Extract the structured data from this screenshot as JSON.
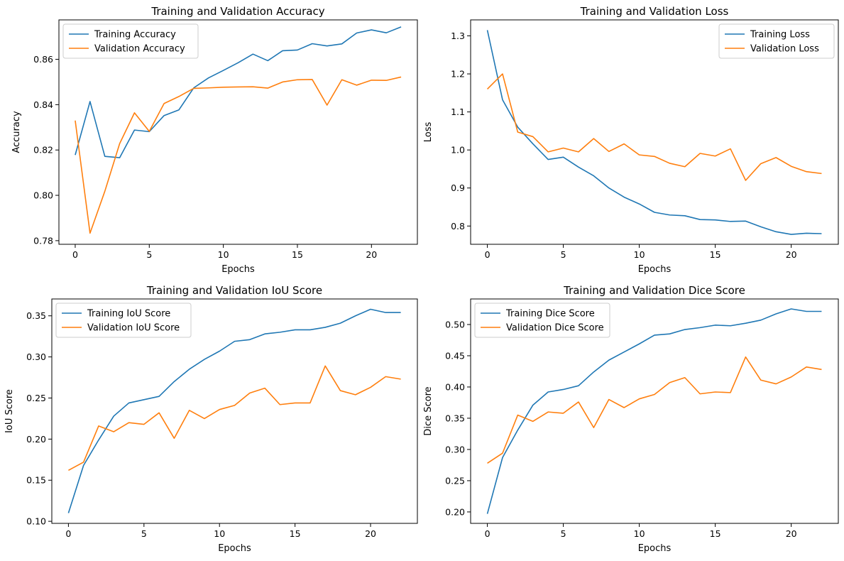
{
  "chart_data": [
    {
      "type": "line",
      "title": "Training and Validation Accuracy",
      "xlabel": "Epochs",
      "ylabel": "Accuracy",
      "xlim": [
        -1.1,
        23.1
      ],
      "ylim": [
        0.7784,
        0.8774
      ],
      "xticks": [
        0,
        5,
        10,
        15,
        20
      ],
      "yticks": [
        0.78,
        0.8,
        0.82,
        0.84,
        0.86
      ],
      "ytick_decimals": 2,
      "legend_position": "upper left",
      "x": [
        0,
        1,
        2,
        3,
        4,
        5,
        6,
        7,
        8,
        9,
        10,
        11,
        12,
        13,
        14,
        15,
        16,
        17,
        18,
        19,
        20,
        21,
        22
      ],
      "series": [
        {
          "name": "Training Accuracy",
          "color": "#1f77b4",
          "values": [
            0.8178,
            0.8414,
            0.8172,
            0.8166,
            0.8288,
            0.8281,
            0.8352,
            0.8377,
            0.8474,
            0.8518,
            0.8551,
            0.8585,
            0.8623,
            0.8594,
            0.8638,
            0.8641,
            0.8669,
            0.8659,
            0.8668,
            0.8716,
            0.873,
            0.8717,
            0.8743
          ]
        },
        {
          "name": "Validation Accuracy",
          "color": "#ff7f0e",
          "values": [
            0.833,
            0.7833,
            0.8018,
            0.8228,
            0.8364,
            0.8282,
            0.8405,
            0.8436,
            0.8472,
            0.8474,
            0.8477,
            0.8478,
            0.8479,
            0.8473,
            0.85,
            0.851,
            0.8511,
            0.8398,
            0.851,
            0.8486,
            0.8508,
            0.8507,
            0.8522
          ]
        }
      ]
    },
    {
      "type": "line",
      "title": "Training and Validation Loss",
      "xlabel": "Epochs",
      "ylabel": "Loss",
      "xlim": [
        -1.1,
        23.1
      ],
      "ylim": [
        0.752,
        1.342
      ],
      "xticks": [
        0,
        5,
        10,
        15,
        20
      ],
      "yticks": [
        0.8,
        0.9,
        1.0,
        1.1,
        1.2,
        1.3
      ],
      "ytick_decimals": 1,
      "legend_position": "upper right",
      "x": [
        0,
        1,
        2,
        3,
        4,
        5,
        6,
        7,
        8,
        9,
        10,
        11,
        12,
        13,
        14,
        15,
        16,
        17,
        18,
        19,
        20,
        21,
        22
      ],
      "series": [
        {
          "name": "Training Loss",
          "color": "#1f77b4",
          "values": [
            1.315,
            1.132,
            1.06,
            1.016,
            0.975,
            0.981,
            0.955,
            0.932,
            0.9,
            0.876,
            0.858,
            0.836,
            0.829,
            0.827,
            0.817,
            0.816,
            0.812,
            0.813,
            0.798,
            0.785,
            0.778,
            0.781,
            0.78
          ]
        },
        {
          "name": "Validation Loss",
          "color": "#ff7f0e",
          "values": [
            1.16,
            1.2,
            1.047,
            1.035,
            0.995,
            1.005,
            0.995,
            1.03,
            0.996,
            1.016,
            0.987,
            0.983,
            0.965,
            0.956,
            0.991,
            0.984,
            1.003,
            0.92,
            0.964,
            0.98,
            0.957,
            0.943,
            0.938
          ]
        }
      ]
    },
    {
      "type": "line",
      "title": "Training and Validation IoU Score",
      "xlabel": "Epochs",
      "ylabel": "IoU Score",
      "xlim": [
        -1.1,
        23.1
      ],
      "ylim": [
        0.0975,
        0.3705
      ],
      "xticks": [
        0,
        5,
        10,
        15,
        20
      ],
      "yticks": [
        0.1,
        0.15,
        0.2,
        0.25,
        0.3,
        0.35
      ],
      "ytick_decimals": 2,
      "legend_position": "upper left",
      "x": [
        0,
        1,
        2,
        3,
        4,
        5,
        6,
        7,
        8,
        9,
        10,
        11,
        12,
        13,
        14,
        15,
        16,
        17,
        18,
        19,
        20,
        21,
        22
      ],
      "series": [
        {
          "name": "Training IoU Score",
          "color": "#1f77b4",
          "values": [
            0.11,
            0.168,
            0.199,
            0.228,
            0.244,
            0.248,
            0.252,
            0.27,
            0.285,
            0.297,
            0.307,
            0.319,
            0.321,
            0.328,
            0.33,
            0.333,
            0.333,
            0.336,
            0.341,
            0.35,
            0.358,
            0.354,
            0.354
          ]
        },
        {
          "name": "Validation IoU Score",
          "color": "#ff7f0e",
          "values": [
            0.162,
            0.172,
            0.216,
            0.209,
            0.22,
            0.218,
            0.232,
            0.201,
            0.235,
            0.225,
            0.236,
            0.241,
            0.256,
            0.262,
            0.242,
            0.244,
            0.244,
            0.289,
            0.259,
            0.254,
            0.263,
            0.276,
            0.273
          ]
        }
      ]
    },
    {
      "type": "line",
      "title": "Training and Validation Dice Score",
      "xlabel": "Epochs",
      "ylabel": "Dice Score",
      "xlim": [
        -1.1,
        23.1
      ],
      "ylim": [
        0.1817,
        0.5409
      ],
      "xticks": [
        0,
        5,
        10,
        15,
        20
      ],
      "yticks": [
        0.2,
        0.25,
        0.3,
        0.35,
        0.4,
        0.45,
        0.5
      ],
      "ytick_decimals": 2,
      "legend_position": "upper left",
      "x": [
        0,
        1,
        2,
        3,
        4,
        5,
        6,
        7,
        8,
        9,
        10,
        11,
        12,
        13,
        14,
        15,
        16,
        17,
        18,
        19,
        20,
        21,
        22
      ],
      "series": [
        {
          "name": "Training Dice Score",
          "color": "#1f77b4",
          "values": [
            0.197,
            0.287,
            0.331,
            0.371,
            0.392,
            0.396,
            0.402,
            0.424,
            0.443,
            0.456,
            0.469,
            0.483,
            0.485,
            0.492,
            0.495,
            0.499,
            0.498,
            0.502,
            0.507,
            0.517,
            0.525,
            0.521,
            0.521
          ]
        },
        {
          "name": "Validation Dice Score",
          "color": "#ff7f0e",
          "values": [
            0.278,
            0.294,
            0.355,
            0.345,
            0.36,
            0.358,
            0.376,
            0.335,
            0.38,
            0.367,
            0.381,
            0.388,
            0.407,
            0.415,
            0.389,
            0.392,
            0.391,
            0.448,
            0.411,
            0.405,
            0.416,
            0.432,
            0.428
          ]
        }
      ]
    }
  ]
}
